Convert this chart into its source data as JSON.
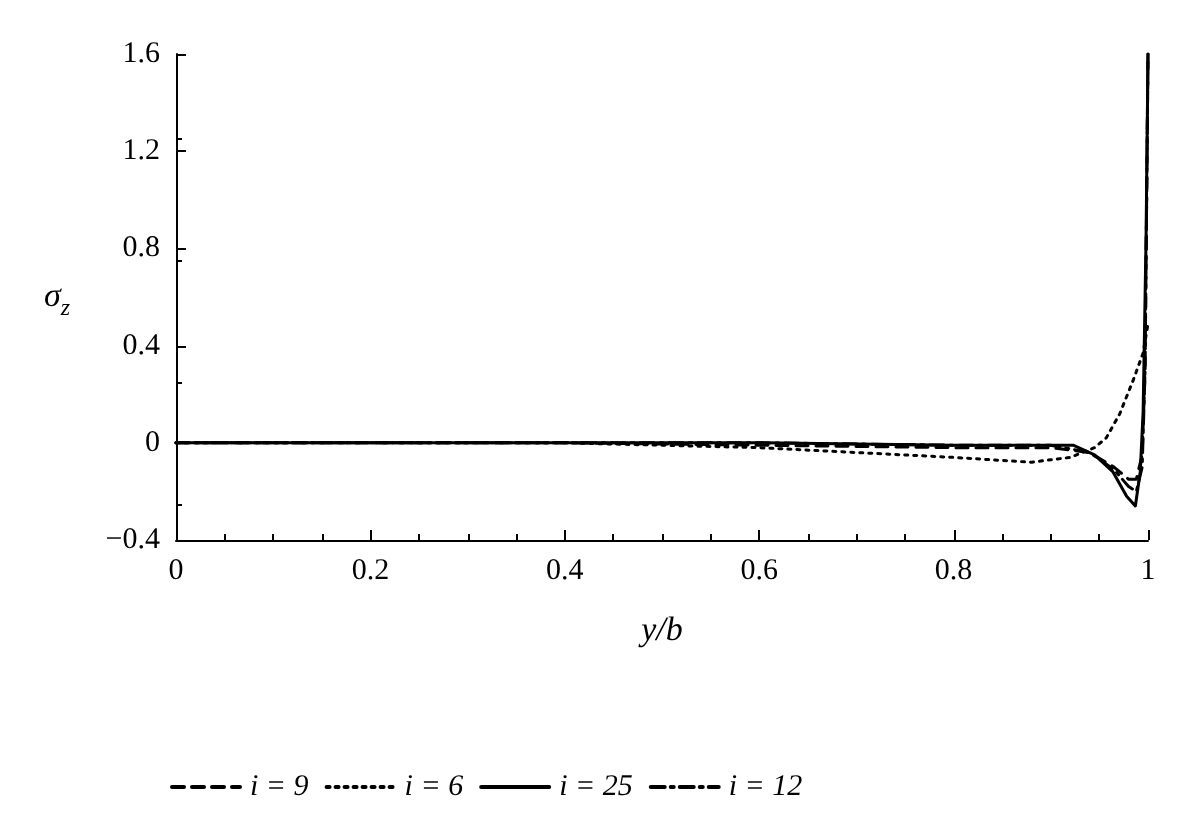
{
  "chart_data": {
    "type": "line",
    "xlabel": "y/b",
    "ylabel": "σ$_{z}$",
    "xlim": [
      0,
      1
    ],
    "xticks": [
      0,
      0.2,
      0.4,
      0.6,
      0.8,
      1
    ],
    "ylim": [
      -0.4,
      1.6
    ],
    "yticks": [
      -0.4,
      0,
      0.4,
      0.8,
      1.2,
      1.6
    ],
    "grid": false,
    "legend": "bottom",
    "marker": "none",
    "series": [
      {
        "name": "i = 9",
        "color": "#000000",
        "line_style": "dashed",
        "x": [
          0,
          0.2,
          0.4,
          0.6,
          0.8,
          0.9,
          0.94,
          0.965,
          0.98,
          0.988,
          0.994,
          0.997,
          1
        ],
        "values": [
          0,
          0,
          0,
          -0.01,
          -0.02,
          -0.02,
          -0.04,
          -0.1,
          -0.15,
          -0.15,
          -0.05,
          0.3,
          1.6
        ]
      },
      {
        "name": "i = 6",
        "color": "#000000",
        "line_style": "dotted",
        "x": [
          0,
          0.2,
          0.4,
          0.5,
          0.6,
          0.7,
          0.8,
          0.88,
          0.92,
          0.945,
          0.957,
          0.971,
          0.985,
          0.995,
          1
        ],
        "values": [
          0,
          0,
          0,
          -0.01,
          -0.02,
          -0.04,
          -0.06,
          -0.08,
          -0.06,
          -0.02,
          0.02,
          0.12,
          0.26,
          0.37,
          0.49
        ]
      },
      {
        "name": "i = 25",
        "color": "#000000",
        "line_style": "solid",
        "x": [
          0,
          0.2,
          0.4,
          0.6,
          0.8,
          0.9,
          0.923,
          0.945,
          0.964,
          0.978,
          0.987,
          0.992,
          0.995,
          0.998,
          1
        ],
        "values": [
          0,
          0,
          0,
          0,
          -0.01,
          -0.01,
          -0.01,
          -0.05,
          -0.12,
          -0.22,
          -0.26,
          -0.12,
          0.13,
          0.84,
          1.6
        ]
      },
      {
        "name": "i = 12",
        "color": "#000000",
        "line_style": "dashdot",
        "x": [
          0,
          0.2,
          0.4,
          0.6,
          0.8,
          0.9,
          0.94,
          0.965,
          0.98,
          0.988,
          0.994,
          0.997,
          1
        ],
        "values": [
          0,
          0,
          0,
          0,
          -0.01,
          -0.01,
          -0.04,
          -0.11,
          -0.18,
          -0.2,
          -0.1,
          0.3,
          1.6
        ]
      }
    ]
  }
}
